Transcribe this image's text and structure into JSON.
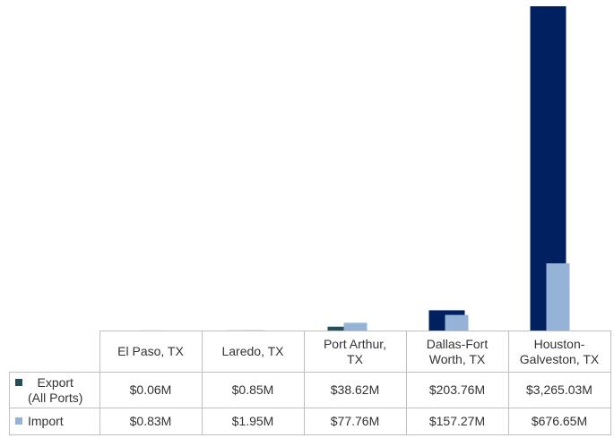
{
  "chart_data": {
    "type": "bar",
    "categories": [
      "El Paso, TX",
      "Laredo, TX",
      "Port Arthur,\nTX",
      "Dallas-Fort\nWorth, TX",
      "Houston-\nGalveston, TX"
    ],
    "series": [
      {
        "name": "Export\n(All Ports)",
        "color": "#254e58",
        "point_colors": [
          "#254e58",
          "#254e58",
          "#254e58",
          "#002060",
          "#002060"
        ],
        "values": [
          0.06,
          0.85,
          38.62,
          203.76,
          3265.03
        ],
        "value_labels": [
          "$0.06M",
          "$0.85M",
          "$38.62M",
          "$203.76M",
          "$3,265.03M"
        ]
      },
      {
        "name": "Import",
        "color": "#95b3d7",
        "values": [
          0.83,
          1.95,
          77.76,
          157.27,
          676.65
        ],
        "value_labels": [
          "$0.83M",
          "$1.95M",
          "$77.76M",
          "$157.27M",
          "$676.65M"
        ]
      }
    ],
    "ylim": [
      0,
      3265.03
    ]
  }
}
